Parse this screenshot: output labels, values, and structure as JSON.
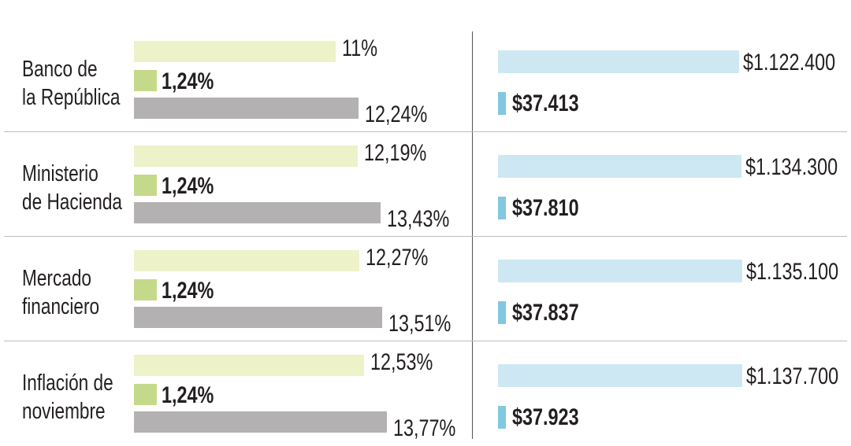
{
  "colors": {
    "projected_rate": "#eef2c8",
    "adjustment": "#c5d98a",
    "total_increase": "#b3b1b2",
    "new_salary": "#cde8f2",
    "salary_increase": "#82c8de"
  },
  "chart_data": [
    {
      "type": "bar",
      "categories": [
        "Banco de la República",
        "Ministerio de Hacienda",
        "Mercado financiero",
        "Inflación de noviembre"
      ],
      "series": [
        {
          "values": [
            11,
            12.19,
            12.27,
            12.53
          ],
          "labels": [
            "11%",
            "12,19%",
            "12,27%",
            "12,53%"
          ]
        },
        {
          "values": [
            1.24,
            1.24,
            1.24,
            1.24
          ],
          "labels": [
            "1,24%",
            "1,24%",
            "1,24%",
            "1,24%"
          ]
        },
        {
          "values": [
            12.24,
            13.43,
            13.51,
            13.77
          ],
          "labels": [
            "12,24%",
            "13,43%",
            "13,51%",
            "13,77%"
          ]
        }
      ]
    },
    {
      "type": "bar",
      "categories": [
        "Banco de la República",
        "Ministerio de Hacienda",
        "Mercado financiero",
        "Inflación de noviembre"
      ],
      "series": [
        {
          "values": [
            1122400,
            1134300,
            1135100,
            1137700
          ],
          "labels": [
            "$1.122.400",
            "$1.134.300",
            "$1.135.100",
            "$1.137.700"
          ]
        },
        {
          "values": [
            37413,
            37810,
            37837,
            37923
          ],
          "labels": [
            "$37.413",
            "$37.810",
            "$37.837",
            "$37.923"
          ]
        }
      ]
    }
  ],
  "rows": [
    {
      "line1": "Banco de",
      "line2": "la República"
    },
    {
      "line1": "Ministerio",
      "line2": "de Hacienda"
    },
    {
      "line1": "Mercado",
      "line2": "financiero"
    },
    {
      "line1": "Inflación de",
      "line2": "noviembre"
    }
  ]
}
